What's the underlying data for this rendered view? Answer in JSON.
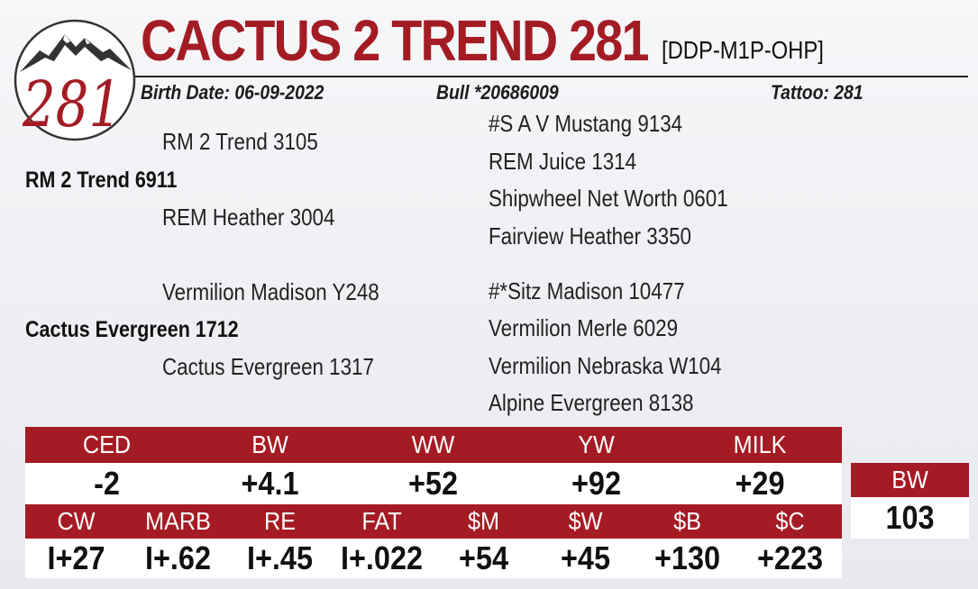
{
  "logo": {
    "number": "281",
    "icon": "mountain-icon"
  },
  "header": {
    "title": "CACTUS 2 TREND 281",
    "registration": "[DDP-M1P-OHP]",
    "birth_date": "Birth Date: 06-09-2022",
    "bull_id": "Bull *20686009",
    "tattoo": "Tattoo: 281"
  },
  "pedigree": {
    "sire": {
      "name": "RM 2 Trend 6911",
      "sire": "RM 2 Trend 3105",
      "dam": "REM Heather 3004",
      "sire_sire": "#S A V Mustang 9134",
      "sire_dam": "REM Juice 1314",
      "dam_sire": "Shipwheel Net Worth 0601",
      "dam_dam": "Fairview Heather 3350"
    },
    "dam": {
      "name": "Cactus Evergreen 1712",
      "sire": "Vermilion Madison Y248",
      "dam": "Cactus Evergreen 1317",
      "sire_sire": "#*Sitz Madison 10477",
      "sire_dam": "Vermilion Merle 6029",
      "dam_sire": "Vermilion Nebraska W104",
      "dam_dam": "Alpine Evergreen 8138"
    }
  },
  "epd_row1": {
    "labels": [
      "CED",
      "BW",
      "WW",
      "YW",
      "MILK"
    ],
    "values": [
      "-2",
      "+4.1",
      "+52",
      "+92",
      "+29"
    ]
  },
  "epd_row2": {
    "labels": [
      "CW",
      "MARB",
      "RE",
      "FAT",
      "$M",
      "$W",
      "$B",
      "$C"
    ],
    "values": [
      "I+27",
      "I+.62",
      "I+.45",
      "I+.022",
      "+54",
      "+45",
      "+130",
      "+223"
    ]
  },
  "actual_bw": {
    "label": "BW",
    "value": "103"
  },
  "colors": {
    "accent": "#a51b23",
    "title": "#a31c24"
  }
}
